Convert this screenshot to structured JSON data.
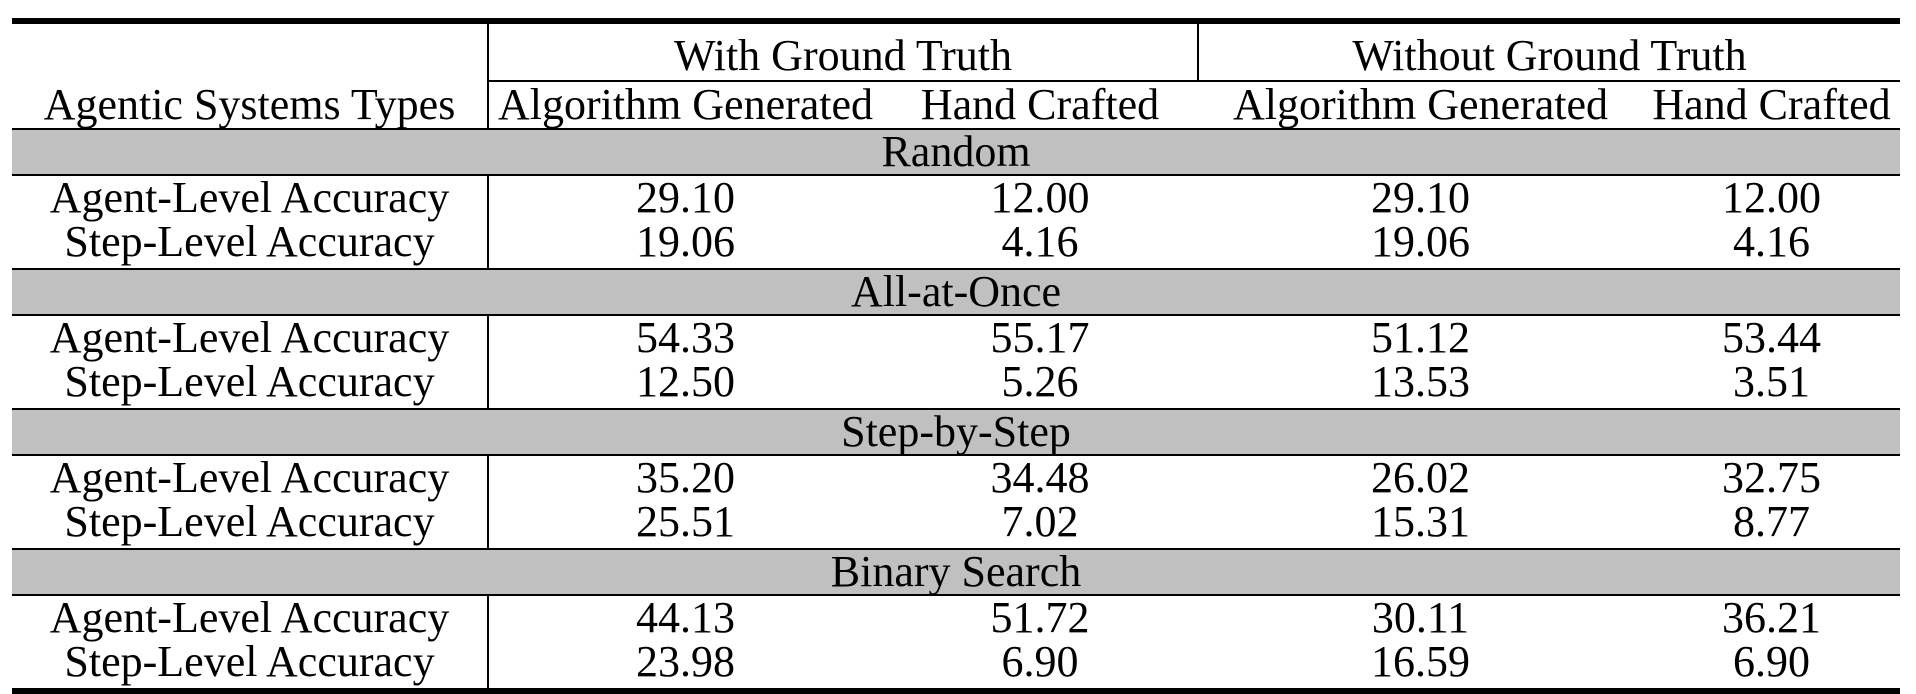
{
  "table": {
    "group_headers": {
      "with_gt": "With Ground Truth",
      "without_gt": "Without Ground Truth"
    },
    "row_header_title": "Agentic Systems Types",
    "columns": [
      "Algorithm Generated",
      "Hand Crafted",
      "Algorithm Generated",
      "Hand Crafted"
    ],
    "sections": [
      {
        "name": "Random",
        "rows": [
          {
            "label": "Agent-Level Accuracy",
            "values": [
              "29.10",
              "12.00",
              "29.10",
              "12.00"
            ],
            "bold": [
              false,
              false,
              false,
              false
            ]
          },
          {
            "label": "Step-Level Accuracy",
            "values": [
              "19.06",
              "4.16",
              "19.06",
              "4.16"
            ],
            "bold": [
              false,
              false,
              false,
              false
            ]
          }
        ]
      },
      {
        "name": "All-at-Once",
        "rows": [
          {
            "label": "Agent-Level Accuracy",
            "values": [
              "54.33",
              "55.17",
              "51.12",
              "53.44"
            ],
            "bold": [
              true,
              true,
              true,
              true
            ]
          },
          {
            "label": "Step-Level Accuracy",
            "values": [
              "12.50",
              "5.26",
              "13.53",
              "3.51"
            ],
            "bold": [
              false,
              false,
              false,
              false
            ]
          }
        ]
      },
      {
        "name": "Step-by-Step",
        "rows": [
          {
            "label": "Agent-Level Accuracy",
            "values": [
              "35.20",
              "34.48",
              "26.02",
              "32.75"
            ],
            "bold": [
              false,
              false,
              false,
              false
            ]
          },
          {
            "label": "Step-Level Accuracy",
            "values": [
              "25.51",
              "7.02",
              "15.31",
              "8.77"
            ],
            "bold": [
              true,
              true,
              false,
              true
            ]
          }
        ]
      },
      {
        "name": "Binary Search",
        "rows": [
          {
            "label": "Agent-Level Accuracy",
            "values": [
              "44.13",
              "51.72",
              "30.11",
              "36.21"
            ],
            "bold": [
              false,
              false,
              false,
              false
            ]
          },
          {
            "label": "Step-Level Accuracy",
            "values": [
              "23.98",
              "6.90",
              "16.59",
              "6.90"
            ],
            "bold": [
              false,
              false,
              true,
              false
            ]
          }
        ]
      }
    ]
  }
}
